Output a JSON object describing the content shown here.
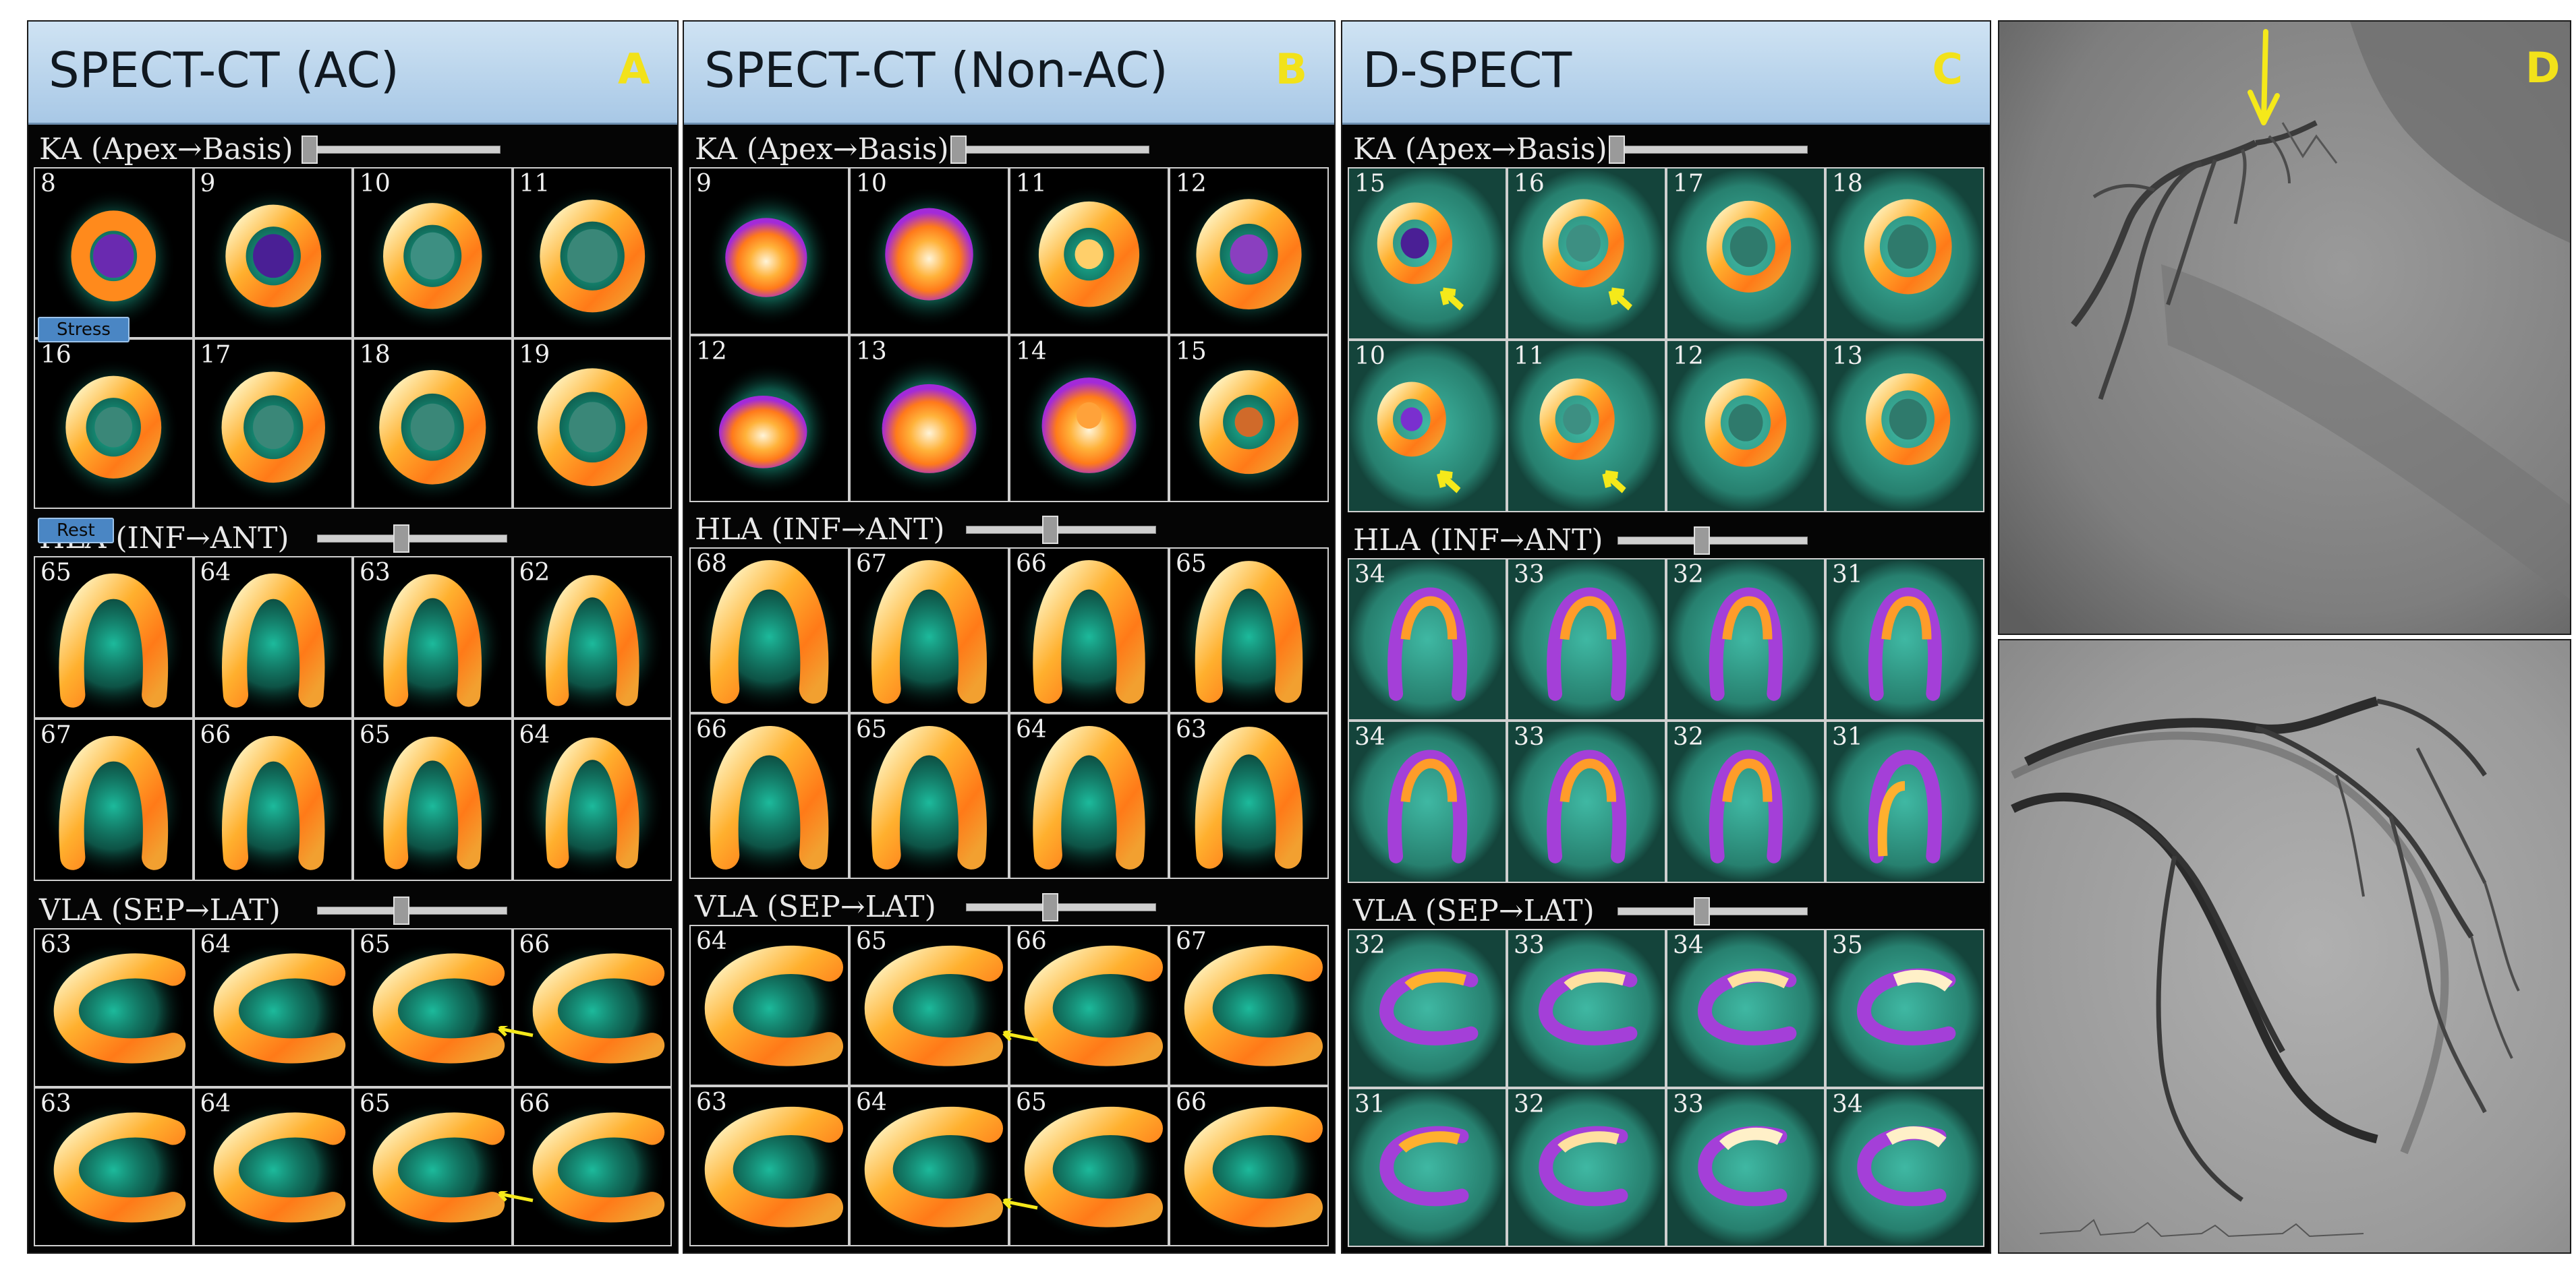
{
  "colors": {
    "header": "#a8c8e6",
    "letter": "#f2e21a",
    "arrow": "#f5e91a"
  },
  "panels": {
    "a": {
      "title": "SPECT-CT (AC)",
      "letter": "A",
      "stress_badge": "Stress",
      "rest_badge": "Rest",
      "ka": {
        "label": "KA (Apex→Basis)",
        "row1": [
          "8",
          "9",
          "10",
          "11"
        ],
        "row2": [
          "16",
          "17",
          "18",
          "19"
        ]
      },
      "hla": {
        "label": "HLA (INF→ANT)",
        "row1": [
          "65",
          "64",
          "63",
          "62"
        ],
        "row2": [
          "67",
          "66",
          "65",
          "64"
        ]
      },
      "vla": {
        "label": "VLA (SEP→LAT)",
        "row1": [
          "63",
          "64",
          "65",
          "66"
        ],
        "row2": [
          "63",
          "64",
          "65",
          "66"
        ]
      }
    },
    "b": {
      "title": "SPECT-CT (Non-AC)",
      "letter": "B",
      "ka": {
        "label": "KA (Apex→Basis)",
        "row1": [
          "9",
          "10",
          "11",
          "12"
        ],
        "row2": [
          "12",
          "13",
          "14",
          "15"
        ]
      },
      "hla": {
        "label": "HLA (INF→ANT)",
        "row1": [
          "68",
          "67",
          "66",
          "65"
        ],
        "row2": [
          "66",
          "65",
          "64",
          "63"
        ]
      },
      "vla": {
        "label": "VLA (SEP→LAT)",
        "row1": [
          "64",
          "65",
          "66",
          "67"
        ],
        "row2": [
          "63",
          "64",
          "65",
          "66"
        ]
      }
    },
    "c": {
      "title": "D-SPECT",
      "letter": "C",
      "ka": {
        "label": "KA (Apex→Basis)",
        "row1": [
          "15",
          "16",
          "17",
          "18"
        ],
        "row2": [
          "10",
          "11",
          "12",
          "13"
        ]
      },
      "hla": {
        "label": "HLA (INF→ANT)",
        "row1": [
          "34",
          "33",
          "32",
          "31"
        ],
        "row2": [
          "34",
          "33",
          "32",
          "31"
        ]
      },
      "vla": {
        "label": "VLA (SEP→LAT)",
        "row1": [
          "32",
          "33",
          "34",
          "35"
        ],
        "row2": [
          "31",
          "32",
          "33",
          "34"
        ]
      }
    },
    "d": {
      "letter": "D"
    }
  }
}
